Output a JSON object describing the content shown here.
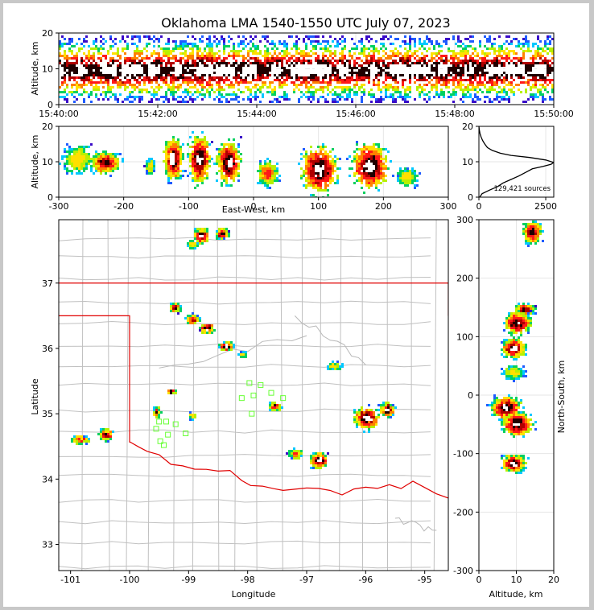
{
  "figure": {
    "title": "Oklahoma LMA 1540-1550 UTC July 07, 2023",
    "source_count_label": "129,421 sources"
  },
  "chart_data": [
    {
      "id": "altitude-time",
      "type": "heatmap",
      "xlabel": "",
      "ylabel": "Altitude, km",
      "xticks": [
        "15:40:00",
        "15:42:00",
        "15:44:00",
        "15:46:00",
        "15:48:00",
        "15:50:00"
      ],
      "xlim": [
        "15:40:00",
        "15:50:00"
      ],
      "yticks": [
        0,
        10,
        20
      ],
      "ylim": [
        0,
        20
      ],
      "grid": true
    },
    {
      "id": "altitude-eastwest",
      "type": "heatmap",
      "xlabel": "East-West, km",
      "ylabel": "Altitude, km",
      "xticks": [
        -300,
        -200,
        -100,
        0,
        100,
        200,
        300
      ],
      "xlim": [
        -300,
        300
      ],
      "yticks": [
        0,
        10,
        20
      ],
      "ylim": [
        0,
        20
      ],
      "grid": true,
      "cells": [
        {
          "x": -230,
          "z": 10,
          "w": 30,
          "h": 7,
          "level": 3
        },
        {
          "x": -272,
          "z": 11,
          "w": 34,
          "h": 10,
          "level": 1
        },
        {
          "x": -160,
          "z": 9,
          "w": 10,
          "h": 5,
          "level": 1
        },
        {
          "x": -125,
          "z": 11,
          "w": 20,
          "h": 14,
          "level": 4
        },
        {
          "x": -85,
          "z": 11,
          "w": 24,
          "h": 16,
          "level": 4
        },
        {
          "x": -40,
          "z": 10,
          "w": 26,
          "h": 14,
          "level": 4
        },
        {
          "x": 20,
          "z": 7,
          "w": 22,
          "h": 8,
          "level": 2
        },
        {
          "x": 100,
          "z": 8,
          "w": 40,
          "h": 16,
          "level": 4
        },
        {
          "x": 178,
          "z": 9,
          "w": 40,
          "h": 16,
          "level": 5
        },
        {
          "x": 235,
          "z": 6,
          "w": 22,
          "h": 6,
          "level": 1
        }
      ]
    },
    {
      "id": "altitude-histogram",
      "type": "line",
      "xlabel": "",
      "ylabel": "",
      "xticks": [
        0,
        2500
      ],
      "xlim": [
        0,
        2800
      ],
      "yticks": [
        0,
        10,
        20
      ],
      "ylim": [
        0,
        20
      ],
      "points": [
        [
          30,
          0
        ],
        [
          120,
          1
        ],
        [
          400,
          2
        ],
        [
          700,
          3
        ],
        [
          900,
          4
        ],
        [
          1200,
          5
        ],
        [
          1500,
          6
        ],
        [
          1750,
          7
        ],
        [
          2000,
          8
        ],
        [
          2400,
          8.7
        ],
        [
          2700,
          9.3
        ],
        [
          2800,
          9.8
        ],
        [
          2500,
          10.5
        ],
        [
          1900,
          11.2
        ],
        [
          1200,
          11.8
        ],
        [
          800,
          12.4
        ],
        [
          500,
          13.2
        ],
        [
          320,
          14
        ],
        [
          220,
          15
        ],
        [
          140,
          16
        ],
        [
          80,
          17
        ],
        [
          40,
          18
        ],
        [
          15,
          19
        ],
        [
          0,
          20
        ]
      ]
    },
    {
      "id": "plan-view",
      "type": "heatmap",
      "xlabel": "Longitude",
      "ylabel": "Latitude",
      "xticks": [
        -101,
        -100,
        -99,
        -98,
        -97,
        -96,
        -95
      ],
      "xlim": [
        -101.2,
        -94.6
      ],
      "yticks": [
        33,
        34,
        35,
        36,
        37
      ],
      "ylim": [
        32.6,
        37.97
      ],
      "boundary_color": "#e00000",
      "county_color": "#c0c0c0",
      "stations": [
        [
          -97.97,
          35.47
        ],
        [
          -97.78,
          35.44
        ],
        [
          -97.9,
          35.28
        ],
        [
          -97.6,
          35.32
        ],
        [
          -97.4,
          35.24
        ],
        [
          -98.1,
          35.24
        ],
        [
          -97.93,
          35.0
        ],
        [
          -99.38,
          34.88
        ],
        [
          -99.5,
          34.88
        ],
        [
          -99.22,
          34.84
        ],
        [
          -99.05,
          34.7
        ],
        [
          -99.55,
          34.77
        ],
        [
          -99.35,
          34.68
        ],
        [
          -99.48,
          34.58
        ],
        [
          -99.42,
          34.52
        ]
      ],
      "cells": [
        {
          "lon": -98.8,
          "lat": 37.74,
          "w": 0.22,
          "h": 0.22,
          "level": 4
        },
        {
          "lon": -98.45,
          "lat": 37.78,
          "w": 0.2,
          "h": 0.16,
          "level": 3
        },
        {
          "lon": -98.95,
          "lat": 37.6,
          "w": 0.18,
          "h": 0.12,
          "level": 1
        },
        {
          "lon": -99.25,
          "lat": 36.64,
          "w": 0.18,
          "h": 0.12,
          "level": 3
        },
        {
          "lon": -98.95,
          "lat": 36.46,
          "w": 0.2,
          "h": 0.12,
          "level": 3
        },
        {
          "lon": -98.7,
          "lat": 36.32,
          "w": 0.22,
          "h": 0.14,
          "level": 4
        },
        {
          "lon": -98.38,
          "lat": 36.05,
          "w": 0.22,
          "h": 0.12,
          "level": 4
        },
        {
          "lon": -98.1,
          "lat": 35.92,
          "w": 0.14,
          "h": 0.08,
          "level": 1
        },
        {
          "lon": -99.3,
          "lat": 35.35,
          "w": 0.12,
          "h": 0.06,
          "level": 3
        },
        {
          "lon": -99.55,
          "lat": 35.04,
          "w": 0.1,
          "h": 0.14,
          "level": 3
        },
        {
          "lon": -98.95,
          "lat": 34.98,
          "w": 0.1,
          "h": 0.08,
          "level": 1
        },
        {
          "lon": -100.42,
          "lat": 34.7,
          "w": 0.22,
          "h": 0.16,
          "level": 3
        },
        {
          "lon": -100.85,
          "lat": 34.62,
          "w": 0.3,
          "h": 0.12,
          "level": 2
        },
        {
          "lon": -97.55,
          "lat": 35.13,
          "w": 0.18,
          "h": 0.1,
          "level": 3
        },
        {
          "lon": -96.55,
          "lat": 35.75,
          "w": 0.25,
          "h": 0.1,
          "level": 1
        },
        {
          "lon": -96.0,
          "lat": 34.95,
          "w": 0.42,
          "h": 0.34,
          "level": 4
        },
        {
          "lon": -95.65,
          "lat": 35.08,
          "w": 0.22,
          "h": 0.2,
          "level": 4
        },
        {
          "lon": -96.8,
          "lat": 34.3,
          "w": 0.3,
          "h": 0.22,
          "level": 4
        },
        {
          "lon": -97.2,
          "lat": 34.4,
          "w": 0.22,
          "h": 0.14,
          "level": 2
        }
      ]
    },
    {
      "id": "northsouth-altitude",
      "type": "heatmap",
      "xlabel": "Altitude, km",
      "ylabel": "North-South, km",
      "xticks": [
        0,
        10,
        20
      ],
      "xlim": [
        0,
        20
      ],
      "yticks": [
        -300,
        -200,
        -100,
        0,
        100,
        200,
        300
      ],
      "ylim": [
        -300,
        300
      ],
      "grid": true,
      "cells": [
        {
          "z": 14,
          "ns": 280,
          "w": 5,
          "h": 24,
          "level": 3
        },
        {
          "z": 12,
          "ns": 148,
          "w": 5,
          "h": 12,
          "level": 3
        },
        {
          "z": 10,
          "ns": 125,
          "w": 7,
          "h": 22,
          "level": 4
        },
        {
          "z": 9,
          "ns": 82,
          "w": 6,
          "h": 20,
          "level": 4
        },
        {
          "z": 9,
          "ns": 40,
          "w": 6,
          "h": 14,
          "level": 1
        },
        {
          "z": 7,
          "ns": -20,
          "w": 8,
          "h": 24,
          "level": 5
        },
        {
          "z": 10,
          "ns": -48,
          "w": 8,
          "h": 26,
          "level": 5
        },
        {
          "z": 9,
          "ns": -115,
          "w": 6,
          "h": 18,
          "level": 4
        }
      ]
    }
  ]
}
